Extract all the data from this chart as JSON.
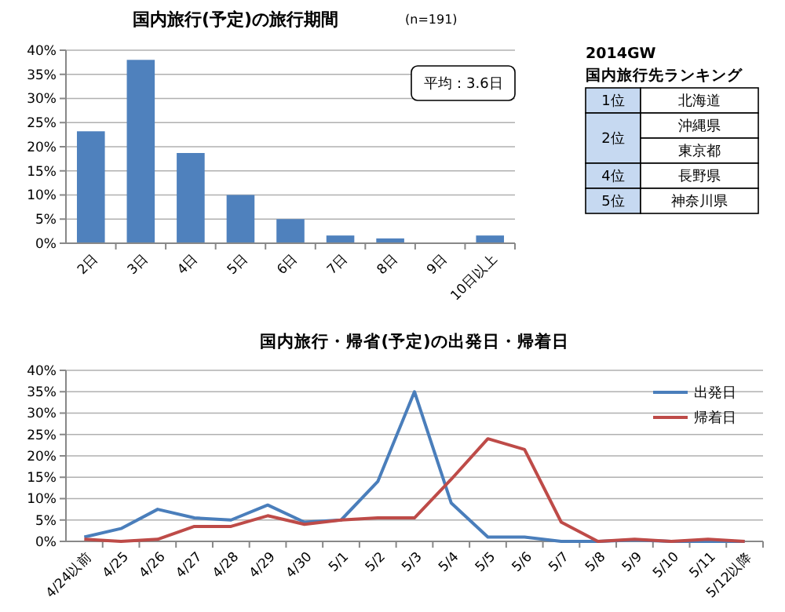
{
  "chart_data": [
    {
      "type": "bar",
      "title": "国内旅行(予定)の旅行期間",
      "subtitle": "(n=191)",
      "annotations": [
        "平均：3.6日"
      ],
      "categories": [
        "2日",
        "3日",
        "4日",
        "5日",
        "6日",
        "7日",
        "8日",
        "9日",
        "10日以上"
      ],
      "values": [
        23.2,
        38,
        18.7,
        10,
        5,
        1.6,
        1,
        0,
        1.6
      ],
      "color": "#4f81bd",
      "ylim": [
        0,
        40
      ],
      "yticks": [
        {
          "value": 0,
          "label": "0%"
        },
        {
          "value": 5,
          "label": "5%"
        },
        {
          "value": 10,
          "label": "10%"
        },
        {
          "value": 15,
          "label": "15%"
        },
        {
          "value": 20,
          "label": "20%"
        },
        {
          "value": 25,
          "label": "25%"
        },
        {
          "value": 30,
          "label": "30%"
        },
        {
          "value": 35,
          "label": "35%"
        },
        {
          "value": 40,
          "label": "40%"
        }
      ],
      "grid": "y"
    },
    {
      "type": "other",
      "title": "2014GW",
      "subtitle": "国内旅行先ランキング",
      "annotations": [
        "1位",
        "北海道",
        "2位",
        "沖縄県",
        "東京都",
        "4位",
        "長野県",
        "5位",
        "神奈川県"
      ]
    },
    {
      "type": "line",
      "title": "国内旅行・帰省(予定)の出発日・帰着日",
      "categories": [
        "4/24以前",
        "4/25",
        "4/26",
        "4/27",
        "4/28",
        "4/29",
        "4/30",
        "5/1",
        "5/2",
        "5/3",
        "5/4",
        "5/5",
        "5/6",
        "5/7",
        "5/8",
        "5/9",
        "5/10",
        "5/11",
        "5/12以降"
      ],
      "series": [
        {
          "name": "出発日",
          "color": "#4a7ebb",
          "values": [
            1,
            3,
            7.5,
            5.5,
            5,
            8.5,
            4.5,
            5,
            14,
            35,
            9,
            1,
            1,
            0,
            0,
            0.3,
            0,
            0,
            0
          ]
        },
        {
          "name": "帰着日",
          "color": "#be4b48",
          "values": [
            0.5,
            0,
            0.5,
            3.5,
            3.5,
            6,
            4,
            5,
            5.5,
            5.5,
            14.5,
            24,
            21.5,
            4.5,
            0,
            0.5,
            0,
            0.5,
            0
          ]
        }
      ],
      "ylim": [
        0,
        40
      ],
      "yticks": [
        {
          "value": 0,
          "label": "0%"
        },
        {
          "value": 5,
          "label": "5%"
        },
        {
          "value": 10,
          "label": "10%"
        },
        {
          "value": 15,
          "label": "15%"
        },
        {
          "value": 20,
          "label": "20%"
        },
        {
          "value": 25,
          "label": "25%"
        },
        {
          "value": 30,
          "label": "30%"
        },
        {
          "value": 35,
          "label": "35%"
        },
        {
          "value": 40,
          "label": "40%"
        }
      ],
      "grid": "y",
      "legend": "top right"
    }
  ]
}
